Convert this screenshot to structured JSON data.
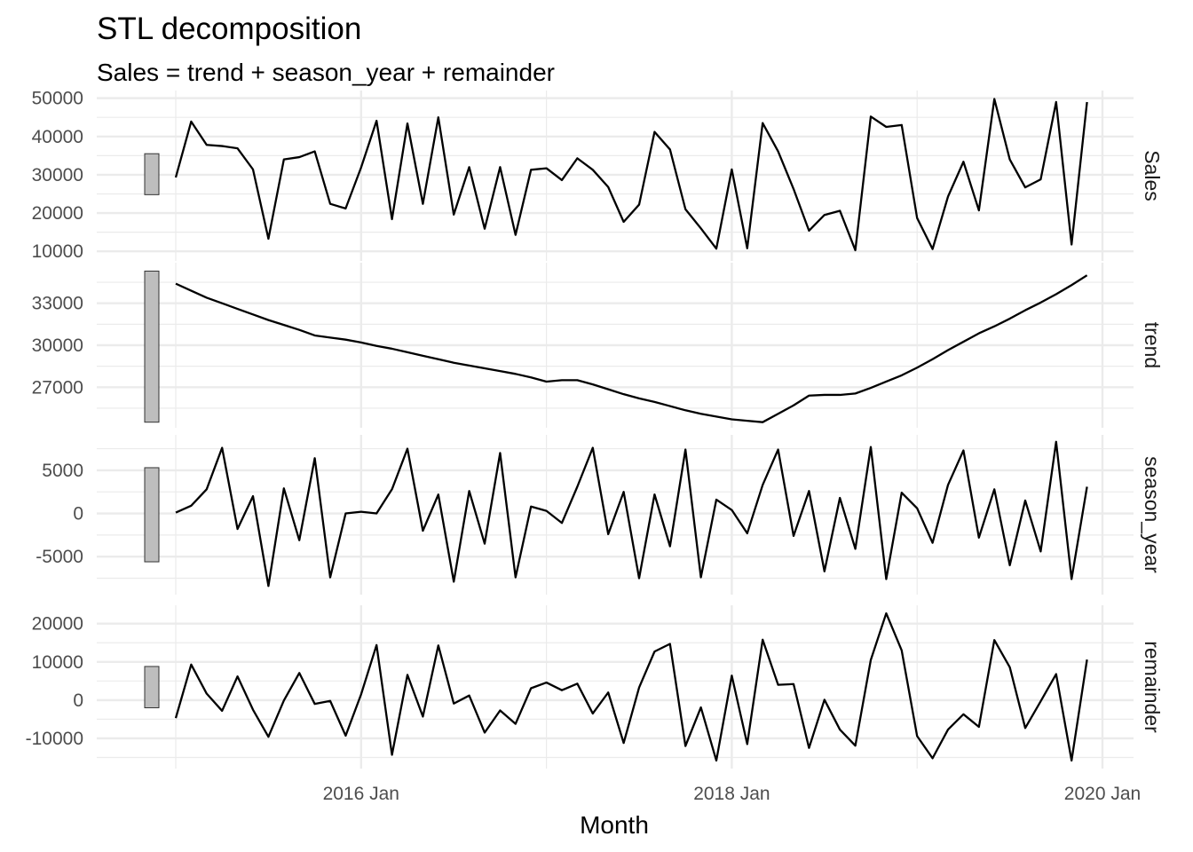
{
  "chart_data": {
    "type": "line",
    "title": "STL decomposition",
    "subtitle": "Sales = trend + season_year + remainder",
    "xlabel": "Month",
    "x": [
      "2015 Jan",
      "2015 Feb",
      "2015 Mar",
      "2015 Apr",
      "2015 May",
      "2015 Jun",
      "2015 Jul",
      "2015 Aug",
      "2015 Sep",
      "2015 Oct",
      "2015 Nov",
      "2015 Dec",
      "2016 Jan",
      "2016 Feb",
      "2016 Mar",
      "2016 Apr",
      "2016 May",
      "2016 Jun",
      "2016 Jul",
      "2016 Aug",
      "2016 Sep",
      "2016 Oct",
      "2016 Nov",
      "2016 Dec",
      "2017 Jan",
      "2017 Feb",
      "2017 Mar",
      "2017 Apr",
      "2017 May",
      "2017 Jun",
      "2017 Jul",
      "2017 Aug",
      "2017 Sep",
      "2017 Oct",
      "2017 Nov",
      "2017 Dec",
      "2018 Jan",
      "2018 Feb",
      "2018 Mar",
      "2018 Apr",
      "2018 May",
      "2018 Jun",
      "2018 Jul",
      "2018 Aug",
      "2018 Sep",
      "2018 Oct",
      "2018 Nov",
      "2018 Dec",
      "2019 Jan",
      "2019 Feb",
      "2019 Mar",
      "2019 Apr",
      "2019 May",
      "2019 Jun",
      "2019 Jul",
      "2019 Aug",
      "2019 Sep",
      "2019 Oct",
      "2019 Nov",
      "2019 Dec"
    ],
    "x_ticks": [
      "2016 Jan",
      "2018 Jan",
      "2020 Jan"
    ],
    "grid": true,
    "panels": [
      {
        "name": "Sales",
        "ylim": [
          10000,
          50000
        ],
        "yticks": [
          10000,
          20000,
          30000,
          40000,
          50000
        ],
        "scale_bar": [
          24800,
          35500
        ],
        "values": [
          29300,
          43900,
          37800,
          37500,
          36900,
          31400,
          13300,
          34000,
          34600,
          36100,
          22400,
          21200,
          31900,
          44100,
          18400,
          43400,
          22400,
          45000,
          19600,
          32000,
          15900,
          32000,
          14300,
          31300,
          31700,
          28600,
          34300,
          31300,
          26800,
          17700,
          22200,
          41200,
          36600,
          21000,
          16000,
          10700,
          31400,
          10800,
          43500,
          36100,
          26300,
          15400,
          19500,
          20600,
          10300,
          45200,
          42500,
          43000,
          18700,
          10600,
          24300,
          33400,
          20700,
          49800,
          34000,
          26700,
          28800,
          49000,
          11800,
          49000
        ]
      },
      {
        "name": "trend",
        "ylim": [
          24500,
          35500
        ],
        "yticks": [
          27000,
          30000,
          33000
        ],
        "scale_bar": [
          24500,
          35300
        ],
        "values": [
          34400,
          33900,
          33400,
          33000,
          32600,
          32200,
          31800,
          31450,
          31100,
          30700,
          30550,
          30400,
          30200,
          29950,
          29750,
          29500,
          29250,
          29000,
          28750,
          28550,
          28350,
          28150,
          27950,
          27700,
          27400,
          27500,
          27500,
          27200,
          26850,
          26500,
          26200,
          25950,
          25650,
          25350,
          25100,
          24900,
          24700,
          24600,
          24500,
          25100,
          25700,
          26400,
          26450,
          26450,
          26550,
          26950,
          27400,
          27850,
          28400,
          29000,
          29650,
          30250,
          30850,
          31350,
          31900,
          32500,
          33050,
          33650,
          34300,
          35000
        ]
      },
      {
        "name": "season_year",
        "ylim": [
          -8500,
          8200
        ],
        "yticks": [
          -5000,
          0,
          5000
        ],
        "scale_bar": [
          -5600,
          5300
        ],
        "values": [
          100,
          900,
          2800,
          7600,
          -1800,
          2000,
          -8400,
          2900,
          -3100,
          6400,
          -7400,
          0,
          200,
          0,
          2800,
          7500,
          -2000,
          2200,
          -7900,
          2600,
          -3500,
          7000,
          -7400,
          800,
          300,
          -1100,
          3100,
          7600,
          -2400,
          2500,
          -7500,
          2200,
          -3800,
          7400,
          -7400,
          1600,
          400,
          -2300,
          3300,
          7400,
          -2600,
          2600,
          -6700,
          1800,
          -4100,
          7700,
          -7600,
          2400,
          600,
          -3400,
          3300,
          7300,
          -2800,
          2800,
          -6000,
          1500,
          -4400,
          8300,
          -7600,
          3100
        ]
      },
      {
        "name": "remainder",
        "ylim": [
          -16000,
          23000
        ],
        "yticks": [
          -10000,
          0,
          10000,
          20000
        ],
        "scale_bar": [
          -2000,
          8800
        ],
        "values": [
          -4700,
          9300,
          1700,
          -2800,
          6200,
          -2500,
          -9600,
          -100,
          7100,
          -1000,
          -200,
          -9300,
          1500,
          14400,
          -14300,
          6600,
          -4300,
          14300,
          -900,
          1200,
          -8500,
          -2700,
          -6200,
          3100,
          4600,
          2600,
          4300,
          -3500,
          2000,
          -11200,
          3300,
          12700,
          14700,
          -12000,
          -1900,
          -15800,
          6400,
          -11500,
          15800,
          4000,
          4200,
          -12500,
          100,
          -7700,
          -11900,
          10500,
          22700,
          13000,
          -9400,
          -15200,
          -7700,
          -3700,
          -7000,
          15700,
          8600,
          -7300,
          -300,
          6800,
          -15800,
          10600
        ]
      }
    ]
  }
}
